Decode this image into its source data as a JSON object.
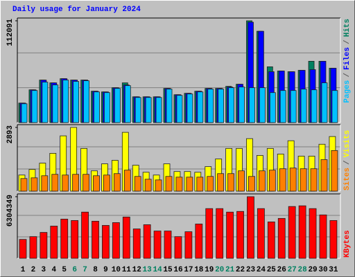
{
  "chart_data": [
    {
      "type": "bar",
      "title": "Daily usage for January 2024",
      "ylim": [
        0,
        112091
      ],
      "yticks": [
        112091
      ],
      "grid_divisions": 3,
      "legend_separator": "/",
      "series": [
        {
          "name": "Hits",
          "color": "#008060",
          "values": [
            21496,
            36083,
            46831,
            43760,
            48366,
            46831,
            46831,
            34547,
            33780,
            38386,
            43760,
            28406,
            28406,
            28406,
            37619,
            30709,
            32245,
            34547,
            37619,
            37619,
            39922,
            42224,
            112091,
            100572,
            61418,
            56811,
            56043,
            57580,
            67560,
            67560,
            59883
          ]
        },
        {
          "name": "Files",
          "color": "#0000ff",
          "values": [
            21496,
            36083,
            46831,
            43760,
            48366,
            46831,
            46831,
            34547,
            33780,
            38386,
            41457,
            28406,
            28406,
            28406,
            37619,
            30709,
            32245,
            34547,
            37619,
            37619,
            39154,
            42224,
            110552,
            100572,
            56043,
            56811,
            56043,
            57580,
            58348,
            67560,
            59883
          ]
        },
        {
          "name": "Pages",
          "color": "#00c0ff",
          "values": [
            20729,
            35315,
            44528,
            41457,
            46831,
            45295,
            46063,
            33780,
            33012,
            37619,
            40689,
            27638,
            27638,
            27638,
            36851,
            29941,
            31477,
            33780,
            36851,
            36851,
            38386,
            39154,
            38386,
            38386,
            33012,
            35315,
            35315,
            36851,
            36083,
            43760,
            35315
          ]
        }
      ]
    },
    {
      "type": "bar",
      "ylim": [
        0,
        2893
      ],
      "yticks": [
        2893
      ],
      "grid_divisions": 3,
      "legend_separator": "/",
      "series": [
        {
          "name": "Visits",
          "color": "#ffff00",
          "values": [
            731,
            985,
            1272,
            1717,
            2511,
            2893,
            1939,
            922,
            1240,
            1399,
            2670,
            1176,
            858,
            731,
            1240,
            890,
            890,
            858,
            1113,
            1462,
            1939,
            1939,
            2384,
            1621,
            1939,
            1685,
            2289,
            1590,
            1590,
            2130,
            2480
          ]
        },
        {
          "name": "Sites",
          "color": "#ff8000",
          "values": [
            572,
            604,
            699,
            763,
            731,
            763,
            763,
            699,
            731,
            795,
            954,
            668,
            540,
            509,
            668,
            636,
            636,
            636,
            668,
            795,
            795,
            922,
            668,
            922,
            954,
            1017,
            1049,
            1017,
            1017,
            1431,
            1844
          ]
        }
      ]
    },
    {
      "type": "bar",
      "ylim": [
        0,
        6304349
      ],
      "yticks": [
        6304349
      ],
      "grid_divisions": 3,
      "categories": [
        "1",
        "2",
        "3",
        "4",
        "5",
        "6",
        "7",
        "8",
        "9",
        "10",
        "11",
        "12",
        "13",
        "14",
        "15",
        "16",
        "17",
        "18",
        "19",
        "20",
        "21",
        "22",
        "23",
        "24",
        "25",
        "26",
        "27",
        "28",
        "29",
        "30",
        "31"
      ],
      "category_colors": [
        "#000000",
        "#000000",
        "#000000",
        "#000000",
        "#000000",
        "#008060",
        "#008060",
        "#000000",
        "#000000",
        "#000000",
        "#000000",
        "#000000",
        "#008060",
        "#008060",
        "#000000",
        "#000000",
        "#000000",
        "#000000",
        "#000000",
        "#008060",
        "#008060",
        "#000000",
        "#000000",
        "#000000",
        "#000000",
        "#000000",
        "#008060",
        "#008060",
        "#000000",
        "#000000",
        "#000000"
      ],
      "series": [
        {
          "name": "KBytes",
          "color": "#ff0000",
          "values": [
            1934280,
            2220840,
            2650680,
            3295440,
            4011840,
            3868560,
            4728240,
            3796920,
            3367080,
            3653640,
            4226760,
            3008880,
            3438720,
            2793960,
            2793960,
            2220840,
            2722320,
            3510360,
            5086440,
            5086440,
            4728240,
            4799880,
            6304349,
            5086440,
            3725280,
            4083480,
            5301360,
            5373000,
            5086440,
            4441680,
            3868560
          ]
        }
      ]
    }
  ]
}
